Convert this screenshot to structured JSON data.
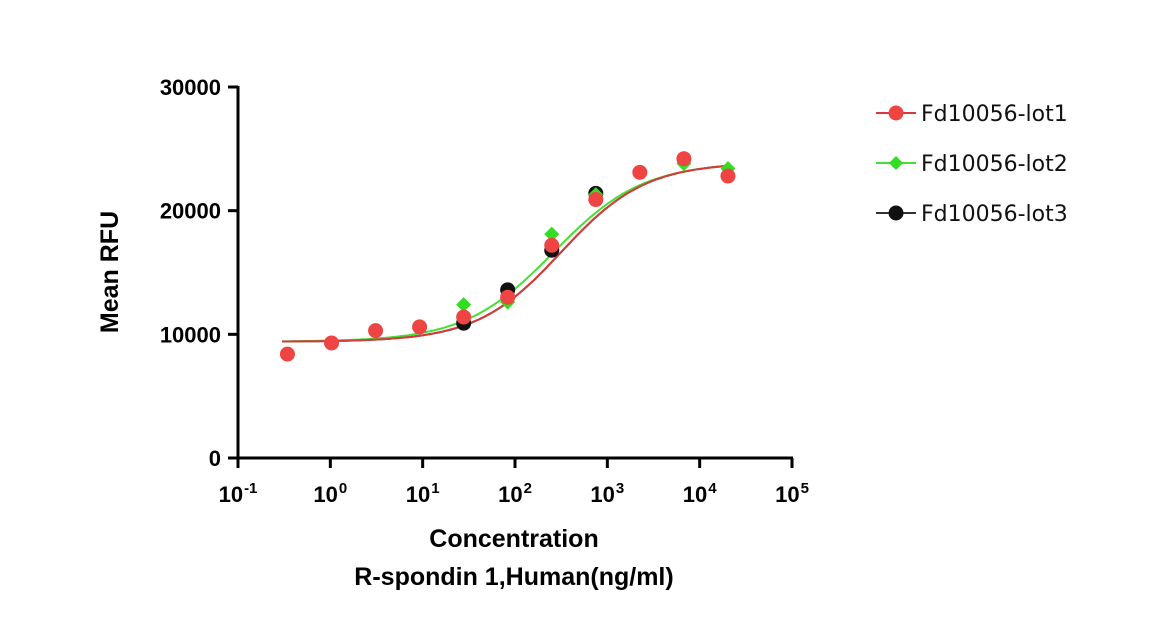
{
  "chart_data": {
    "type": "scatter",
    "title": "",
    "xlabel": "Concentration",
    "xlabel2": "R-spondin 1,Human(ng/ml)",
    "ylabel": "Mean RFU",
    "xscale": "log",
    "xlim": [
      0.1,
      100000
    ],
    "ylim": [
      0,
      30000
    ],
    "yticks": [
      0,
      10000,
      20000,
      30000
    ],
    "ytick_labels": [
      "0",
      "10000",
      "20000",
      "30000"
    ],
    "xtick_bases": [
      "10",
      "10",
      "10",
      "10",
      "10",
      "10",
      "10"
    ],
    "xtick_exponents": [
      "-1",
      "0",
      "1",
      "2",
      "3",
      "4",
      "5"
    ],
    "xtick_values": [
      0.1,
      1,
      10,
      100,
      1000,
      10000,
      100000
    ],
    "legend_position": "right",
    "series": [
      {
        "name": "Fd10056-lot1",
        "color": "#ee4444",
        "line_color": "#d63b3b",
        "marker": "circle",
        "x": [
          0.343,
          1.03,
          3.09,
          9.26,
          27.8,
          83.3,
          250,
          750,
          2250,
          6750,
          20250
        ],
        "y": [
          8400,
          9300,
          10300,
          10600,
          11400,
          13000,
          17200,
          20900,
          23100,
          24200,
          22800
        ],
        "fit": {
          "bottom": 9400,
          "top": 23900,
          "logEC50": 2.5,
          "hill": 0.95
        }
      },
      {
        "name": "Fd10056-lot2",
        "color": "#33dd22",
        "line_color": "#44e033",
        "marker": "diamond",
        "x": [
          27.8,
          83.3,
          250,
          750,
          6750,
          20250
        ],
        "y": [
          12400,
          12600,
          18100,
          21300,
          23800,
          23400
        ],
        "fit": {
          "bottom": 9400,
          "top": 23900,
          "logEC50": 2.42,
          "hill": 0.9
        }
      },
      {
        "name": "Fd10056-lot3",
        "color": "#111111",
        "line_color": "#333333",
        "marker": "circle",
        "x": [
          27.8,
          83.3,
          250,
          750
        ],
        "y": [
          10900,
          13600,
          16800,
          21400
        ],
        "fit": {
          "bottom": 9400,
          "top": 23900,
          "logEC50": 2.5,
          "hill": 0.95
        }
      }
    ]
  }
}
